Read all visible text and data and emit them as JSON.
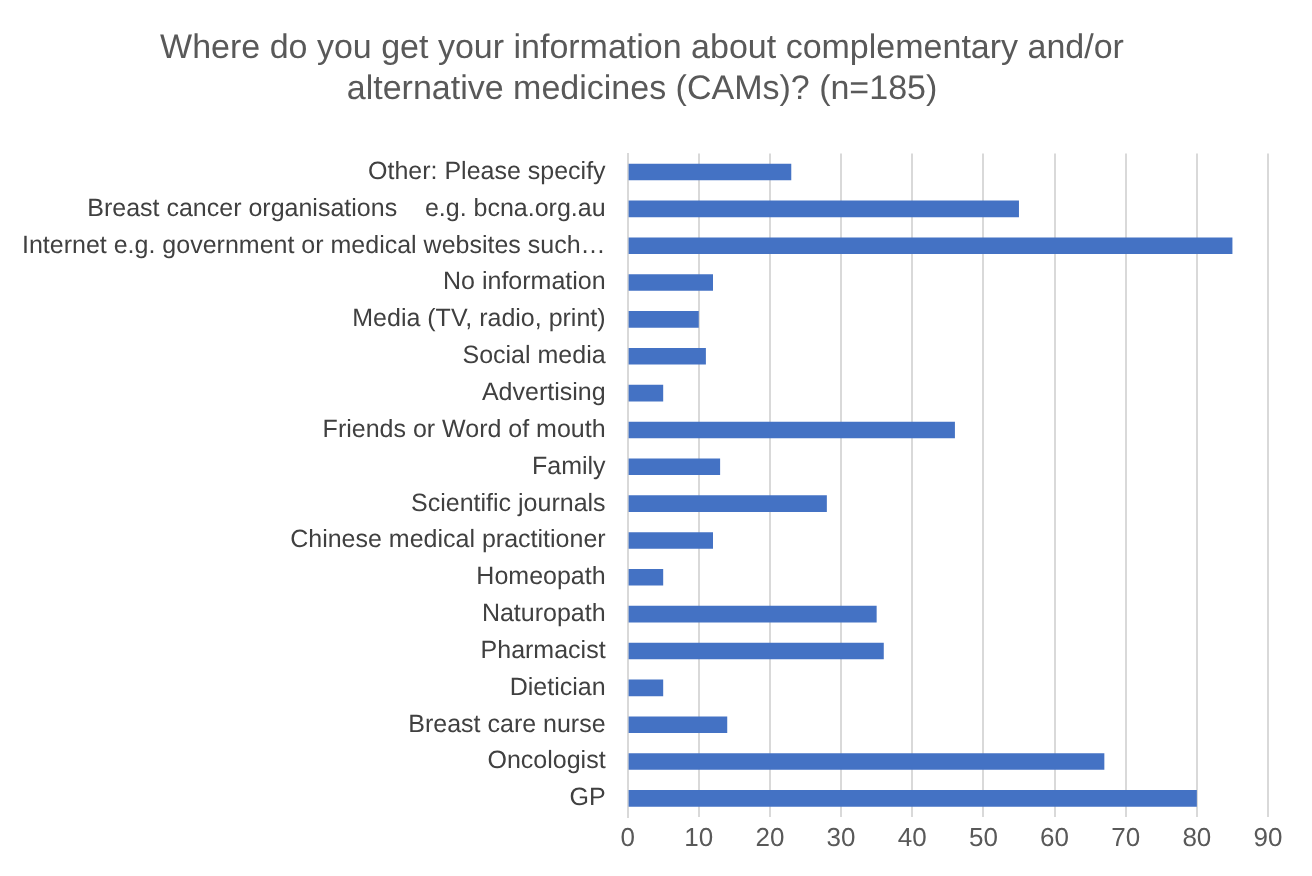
{
  "chart_data": {
    "type": "bar",
    "orientation": "horizontal",
    "title": "Where do you get your information about complementary and/or alternative medicines (CAMs)? (n=185)",
    "categories": [
      "Other: Please specify",
      "Breast cancer organisations    e.g. bcna.org.au",
      "Internet e.g. government or medical websites such…",
      "No information",
      "Media (TV, radio, print)",
      "Social media",
      "Advertising",
      "Friends or Word of mouth",
      "Family",
      "Scientific journals",
      "Chinese medical practitioner",
      "Homeopath",
      "Naturopath",
      "Pharmacist",
      "Dietician",
      "Breast care nurse",
      "Oncologist",
      "GP"
    ],
    "values": [
      23,
      55,
      85,
      12,
      10,
      11,
      5,
      46,
      13,
      28,
      12,
      5,
      35,
      36,
      5,
      14,
      67,
      80
    ],
    "color": "#4472c4",
    "xlim": [
      0,
      90
    ],
    "xticks": [
      0,
      10,
      20,
      30,
      40,
      50,
      60,
      70,
      80,
      90
    ],
    "grid": "x",
    "legend": false
  }
}
